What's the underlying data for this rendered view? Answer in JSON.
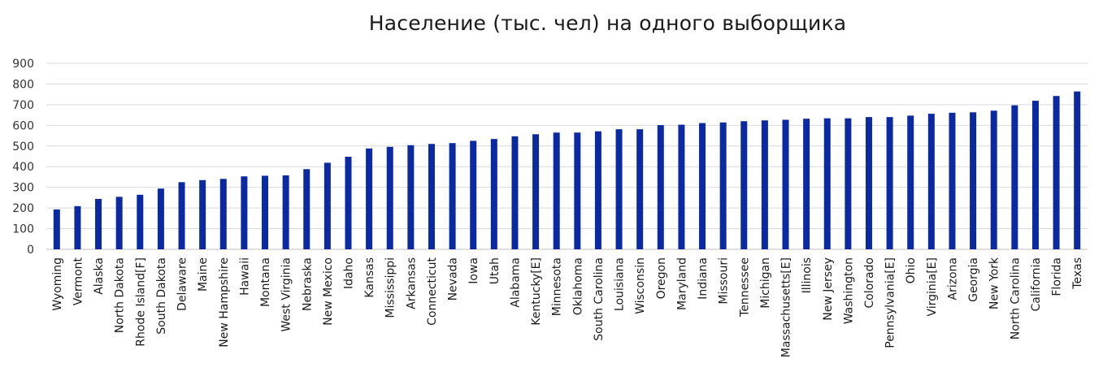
{
  "chart_data": {
    "type": "bar",
    "title": "Население (тыс. чел) на одного выборщика",
    "xlabel": "",
    "ylabel": "",
    "ylim": [
      0,
      900
    ],
    "yticks": [
      0,
      100,
      200,
      300,
      400,
      500,
      600,
      700,
      800,
      900
    ],
    "grid": true,
    "bar_color": "#0b2aa1",
    "categories": [
      "Wyoming",
      "Vermont",
      "Alaska",
      "North Dakota",
      "Rhode Island[F]",
      "South Dakota",
      "Delaware",
      "Maine",
      "New Hampshire",
      "Hawaii",
      "Montana",
      "West Virginia",
      "Nebraska",
      "New Mexico",
      "Idaho",
      "Kansas",
      "Mississippi",
      "Arkansas",
      "Connecticut",
      "Nevada",
      "Iowa",
      "Utah",
      "Alabama",
      "Kentucky[E]",
      "Minnesota",
      "Oklahoma",
      "South Carolina",
      "Louisiana",
      "Wisconsin",
      "Oregon",
      "Maryland",
      "Indiana",
      "Missouri",
      "Tennessee",
      "Michigan",
      "Massachusetts[E]",
      "Illinois",
      "New Jersey",
      "Washington",
      "Colorado",
      "Pennsylvania[E]",
      "Ohio",
      "Virginia[E]",
      "Arizona",
      "Georgia",
      "New York",
      "North Carolina",
      "California",
      "Florida",
      "Texas"
    ],
    "values": [
      193,
      209,
      244,
      254,
      264,
      294,
      325,
      335,
      341,
      353,
      356,
      358,
      388,
      419,
      448,
      488,
      496,
      504,
      510,
      514,
      525,
      534,
      547,
      557,
      565,
      565,
      571,
      581,
      581,
      601,
      603,
      611,
      614,
      620,
      624,
      627,
      632,
      634,
      634,
      640,
      640,
      647,
      656,
      661,
      663,
      671,
      697,
      719,
      742,
      764
    ]
  }
}
